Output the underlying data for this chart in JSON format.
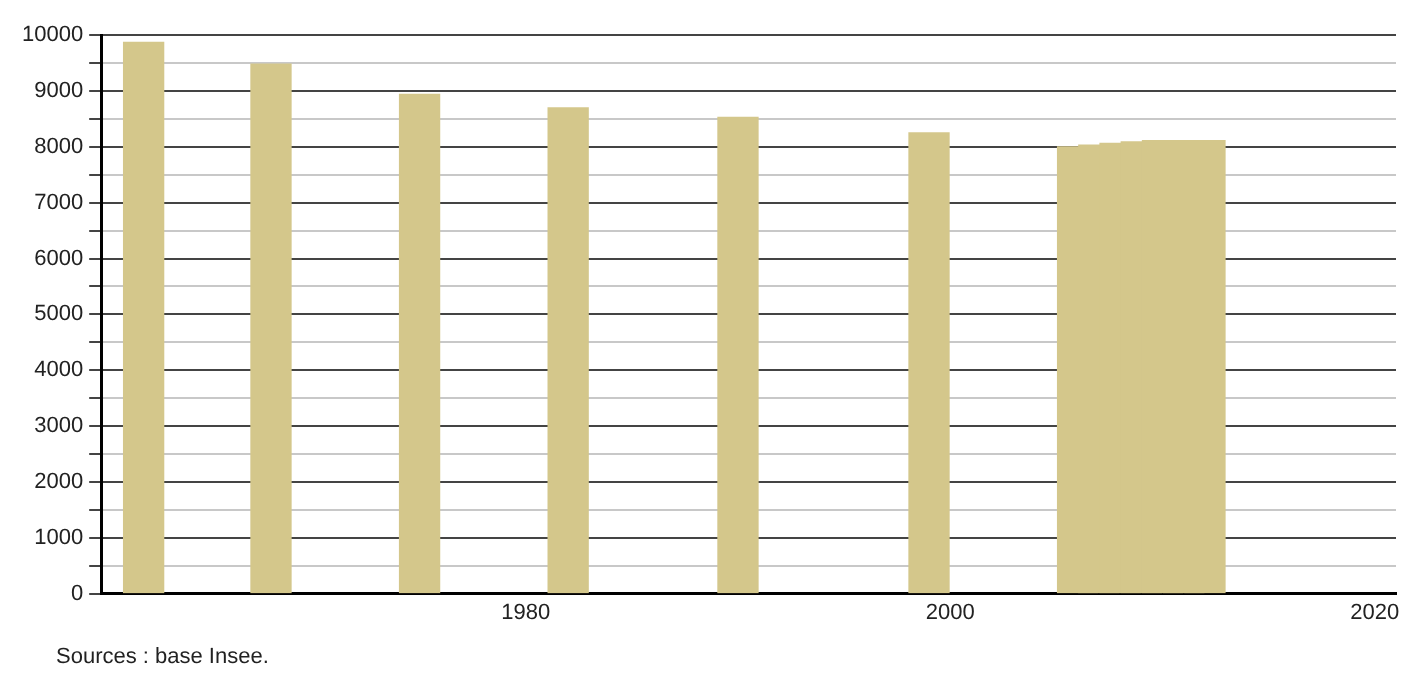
{
  "chart_data": {
    "type": "bar",
    "x": [
      1962,
      1968,
      1975,
      1982,
      1990,
      1999,
      2006,
      2007,
      2008,
      2009,
      2010,
      2011,
      2012
    ],
    "values": [
      9870,
      9480,
      8940,
      8700,
      8530,
      8250,
      8000,
      8030,
      8060,
      8090,
      8110,
      8110,
      8110
    ],
    "color": "#d4c78b",
    "xlim": [
      1960,
      2021
    ],
    "xticks": [
      1980,
      2000,
      2020
    ],
    "ylim": [
      0,
      10000
    ],
    "yticks": [
      0,
      {
        "value": 500,
        "label": null
      },
      1000,
      {
        "value": 1500,
        "label": null
      },
      2000,
      {
        "value": 2500,
        "label": null
      },
      3000,
      {
        "value": 3500,
        "label": null
      },
      4000,
      {
        "value": 4500,
        "label": null
      },
      5000,
      {
        "value": 5500,
        "label": null
      },
      6000,
      {
        "value": 6500,
        "label": null
      },
      7000,
      {
        "value": 7500,
        "label": null
      },
      8000,
      {
        "value": 8500,
        "label": null
      },
      9000,
      {
        "value": 9500,
        "label": null
      },
      10000
    ],
    "grid": "y",
    "legend": false,
    "annotations": [
      "Sources : base Insee."
    ]
  }
}
